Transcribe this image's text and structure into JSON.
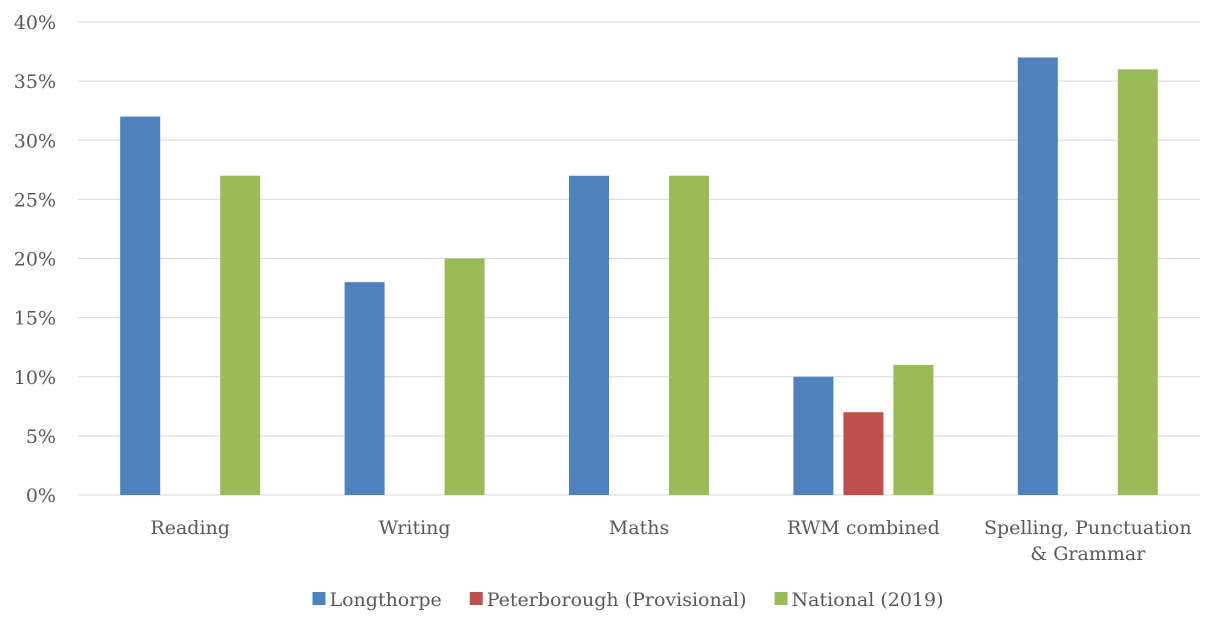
{
  "chart_data": {
    "type": "bar",
    "categories": [
      [
        "Reading"
      ],
      [
        "Writing"
      ],
      [
        "Maths"
      ],
      [
        "RWM combined"
      ],
      [
        "Spelling, Punctuation",
        "& Grammar"
      ]
    ],
    "series": [
      {
        "name": "Longthorpe",
        "color": "#4f81bd",
        "values": [
          32,
          18,
          27,
          10,
          37
        ]
      },
      {
        "name": "Peterborough (Provisional)",
        "color": "#c0504d",
        "values": [
          null,
          null,
          null,
          7,
          null
        ]
      },
      {
        "name": "National (2019)",
        "color": "#9bbb59",
        "values": [
          27,
          20,
          27,
          11,
          36
        ]
      }
    ],
    "ylim": [
      0,
      40
    ],
    "y_ticks": [
      "0%",
      "5%",
      "10%",
      "15%",
      "20%",
      "25%",
      "30%",
      "35%",
      "40%"
    ],
    "y_tick_values": [
      0,
      5,
      10,
      15,
      20,
      25,
      30,
      35,
      40
    ],
    "grid": true,
    "legend_position": "bottom",
    "title": "",
    "xlabel": "",
    "ylabel": ""
  }
}
